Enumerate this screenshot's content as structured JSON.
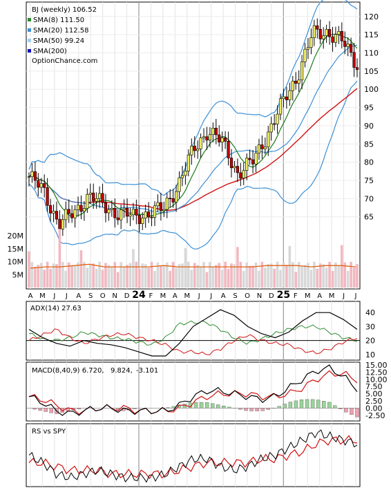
{
  "chart_data": [
    {
      "type": "candlestick",
      "legend": [
        {
          "label": "BJ (weekly) 106.52",
          "color": "#000000",
          "swatch": false
        },
        {
          "label": "SMA(8) 111.50",
          "color": "#2e8b2e",
          "swatch": true
        },
        {
          "label": "SMA(20) 112.58",
          "color": "#3b8fd6",
          "swatch": true
        },
        {
          "label": "SMA(50) 99.24",
          "color": "#9ed0f0",
          "swatch": true
        },
        {
          "label": "SMA(200)",
          "color": "#1010c0",
          "swatch": true
        }
      ],
      "watermark": "OptionChance.com",
      "price_ticks": [
        "65",
        "70",
        "75",
        "80",
        "85",
        "90",
        "95",
        "100",
        "105",
        "110",
        "115",
        "120"
      ],
      "volume_ticks": [
        "5M",
        "10M",
        "15M",
        "20M"
      ],
      "ylim": [
        60,
        123
      ],
      "months": [
        "A",
        "M",
        "J",
        "J",
        "A",
        "S",
        "O",
        "N",
        "D",
        "24",
        "F",
        "M",
        "A",
        "M",
        "J",
        "J",
        "A",
        "S",
        "O",
        "N",
        "D",
        "25",
        "F",
        "M",
        "A",
        "M",
        "J",
        "J"
      ],
      "close_anchors": [
        76,
        72,
        63,
        66,
        71,
        68,
        66,
        65,
        66,
        67,
        74,
        83,
        89,
        85,
        77,
        80,
        88,
        96,
        104,
        115,
        116,
        113,
        107
      ],
      "volume_avg": [
        7.5,
        8,
        8,
        8.5,
        9,
        8,
        8,
        8,
        8,
        8.5,
        8,
        8,
        8,
        8,
        8,
        8,
        8.5,
        8.5,
        8.5,
        8,
        8.5,
        8.5,
        8
      ],
      "colors": {
        "up_body": "#f0f060",
        "down_body": "#c00000",
        "bb": "#3b8fd6",
        "sma200": "#d01010",
        "sma8": "#1a7a1a",
        "vol": "#f2b8c0",
        "vol_up": "#d8d8d8",
        "vol_avg": "#e06010"
      }
    },
    {
      "type": "line",
      "title": "ADX(14) 27.63",
      "yticks": [
        "10",
        "20",
        "30",
        "40"
      ],
      "ylim": [
        7,
        47
      ],
      "ref_line": 20,
      "adx": [
        28,
        22,
        18,
        16,
        20,
        18,
        17,
        15,
        12,
        9,
        9,
        18,
        30,
        36,
        42,
        38,
        30,
        25,
        22,
        26,
        34,
        40,
        40,
        35,
        28
      ],
      "plus_di": [
        25,
        21,
        20,
        22,
        26,
        24,
        22,
        21,
        19,
        17,
        22,
        32,
        33,
        33,
        28,
        22,
        18,
        21,
        25,
        28,
        30,
        30,
        26,
        22,
        20
      ],
      "minus_di": [
        20,
        24,
        28,
        22,
        18,
        21,
        24,
        25,
        22,
        20,
        17,
        12,
        12,
        10,
        14,
        20,
        24,
        20,
        18,
        17,
        13,
        11,
        14,
        19,
        22
      ]
    },
    {
      "type": "line",
      "title": "MACD(8,40,9) 6.720,",
      "signal_label": "9.824,",
      "hist_label": "-3.101",
      "yticks": [
        "-2.50",
        "0.00",
        "2.50",
        "5.00",
        "7.50",
        "10.00",
        "12.50",
        "15.00"
      ],
      "ylim": [
        -4,
        15.5
      ],
      "macd": [
        4,
        2,
        -1,
        -2,
        -1,
        0,
        0,
        -1,
        -1,
        -1,
        -1,
        1,
        4,
        6,
        6,
        5,
        4,
        3,
        4,
        7,
        10,
        13,
        14,
        11,
        6.7
      ],
      "signal": [
        4,
        3,
        1,
        -1,
        -1,
        0,
        0,
        0,
        -1,
        -1,
        -1,
        0,
        2,
        4,
        5,
        5,
        5,
        4,
        4,
        5,
        7,
        10,
        12,
        12,
        9.8
      ]
    },
    {
      "type": "line",
      "title": "RS vs SPY",
      "rs": [
        9,
        7,
        4,
        3,
        4,
        5,
        4,
        3,
        3,
        3,
        4,
        6,
        8,
        8,
        6,
        5,
        6,
        8,
        9,
        11,
        13,
        15,
        14,
        13,
        12
      ],
      "rs_ma": [
        7,
        7,
        6,
        5,
        5,
        5,
        4,
        4,
        4,
        4,
        4,
        5,
        6,
        7,
        7,
        7,
        7,
        8,
        8,
        9,
        10,
        12,
        13,
        13,
        13
      ]
    }
  ]
}
